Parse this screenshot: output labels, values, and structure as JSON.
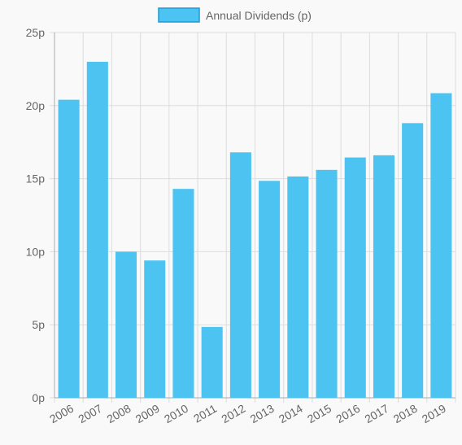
{
  "chart_data": {
    "type": "bar",
    "categories": [
      "2006",
      "2007",
      "2008",
      "2009",
      "2010",
      "2011",
      "2012",
      "2013",
      "2014",
      "2015",
      "2016",
      "2017",
      "2018",
      "2019"
    ],
    "series": [
      {
        "name": "Annual Dividends (p)",
        "values": [
          20.4,
          23.0,
          10.0,
          9.4,
          14.3,
          4.85,
          16.8,
          14.85,
          15.15,
          15.6,
          16.45,
          16.6,
          18.8,
          20.85
        ],
        "color": "#4cc3f1",
        "border_color": "#1e9ad6"
      }
    ],
    "yticks": [
      "0p",
      "5p",
      "10p",
      "15p",
      "20p",
      "25p"
    ],
    "ylim": [
      0,
      25
    ],
    "grid": true,
    "legend_position": "top-center",
    "grid_color": "#dddddd",
    "axis_color": "#aaaaaa",
    "text_color": "#666666"
  }
}
